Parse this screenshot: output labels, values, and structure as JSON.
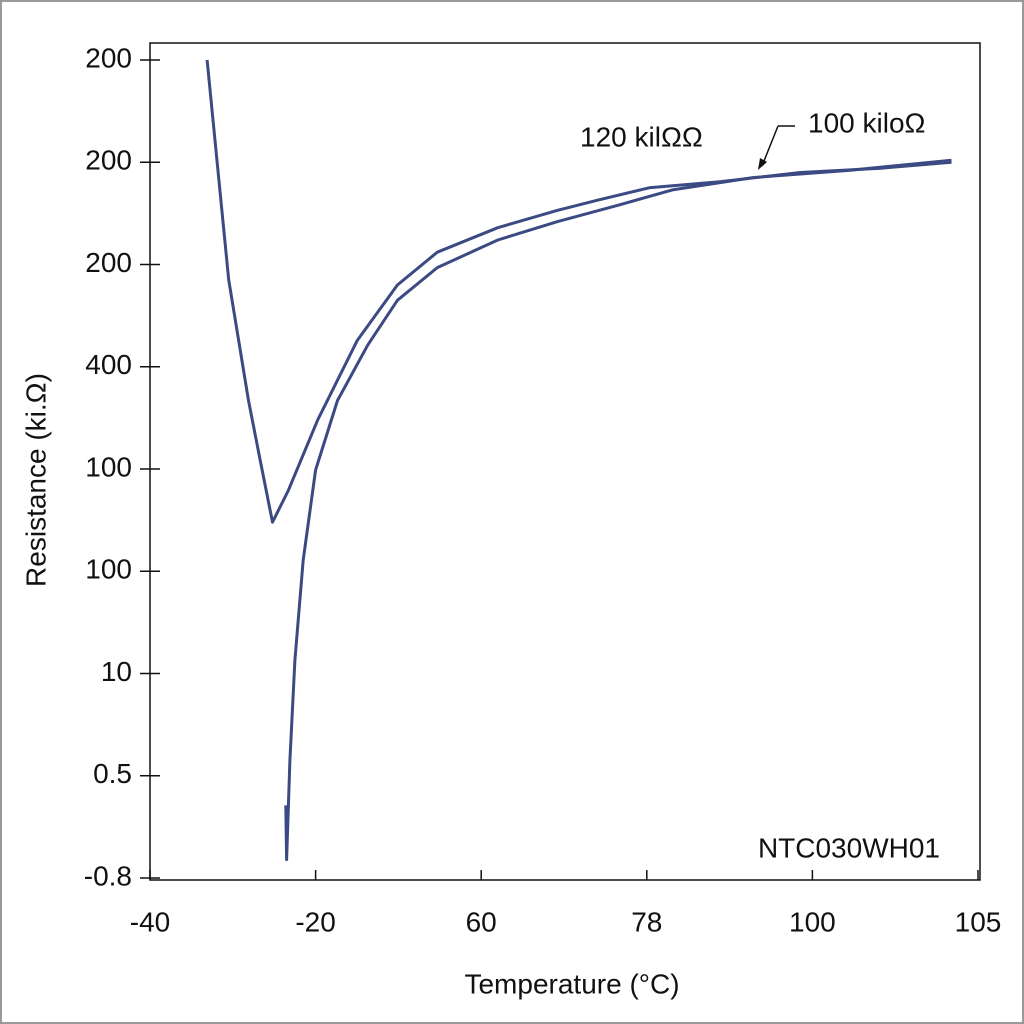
{
  "chart_data": {
    "type": "line",
    "x_label": "Temperature (°C)",
    "y_label": "Resistance (ki.Ω)",
    "xlim": [
      -40,
      105
    ],
    "xticks": [
      -40,
      -20,
      60,
      78,
      100,
      105
    ],
    "ylim": [
      0,
      8
    ],
    "yticks": [
      {
        "value": 0,
        "label": "-0.8"
      },
      {
        "value": 1,
        "label": "0.5"
      },
      {
        "value": 2,
        "label": "10"
      },
      {
        "value": 3,
        "label": "100"
      },
      {
        "value": 4,
        "label": "100"
      },
      {
        "value": 5,
        "label": "400"
      },
      {
        "value": 6,
        "label": "200"
      },
      {
        "value": 7,
        "label": "200"
      },
      {
        "value": 8,
        "label": "200"
      }
    ],
    "series": [
      {
        "color": "#3b4a82",
        "x": [
          -33.1,
          -30.5,
          -28.1,
          -26.7,
          -25.2,
          -23.3,
          -19.0,
          0.2,
          19.5,
          38.8,
          61.8,
          68.3,
          72.7,
          78.3,
          87.7,
          98.4,
          102.0,
          104.2
        ],
        "values": [
          8.0,
          5.85,
          4.67,
          4.09,
          3.48,
          3.79,
          4.48,
          5.26,
          5.8,
          6.12,
          6.36,
          6.53,
          6.63,
          6.75,
          6.81,
          6.9,
          6.94,
          7.0
        ]
      },
      {
        "color": "#3b4a82",
        "x": [
          -23.6,
          -23.5,
          -23.1,
          -22.5,
          -21.5,
          -20.0,
          -9.4,
          5.1,
          19.5,
          38.8,
          61.8,
          68.3,
          74.9,
          81.4,
          92.1,
          101.1,
          104.2
        ],
        "values": [
          0.71,
          0.18,
          1.15,
          2.13,
          3.11,
          3.99,
          4.67,
          5.21,
          5.65,
          5.97,
          6.24,
          6.42,
          6.58,
          6.73,
          6.85,
          6.92,
          7.02
        ]
      }
    ],
    "annotations": [
      "120 kilΩΩ",
      "100 kiloΩ",
      "NTC030WH01"
    ]
  }
}
